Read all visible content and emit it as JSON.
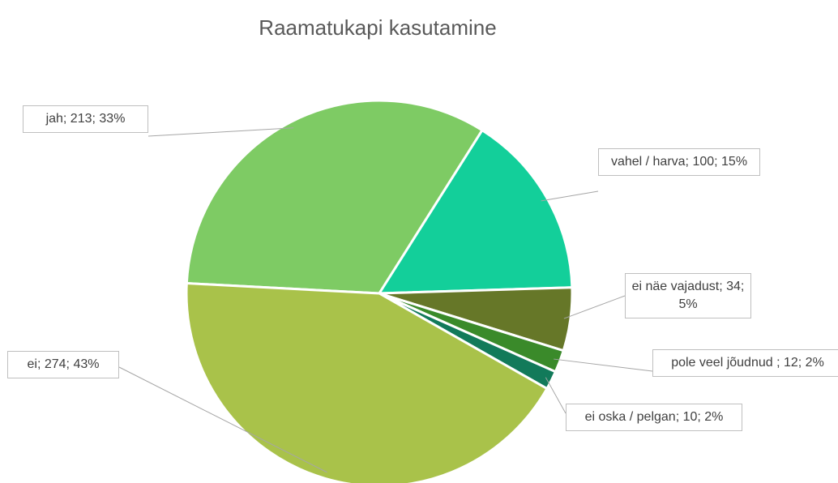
{
  "chart_data": {
    "type": "pie",
    "title": "Raamatukapi kasutamine",
    "categories": [
      "jah",
      "vahel / harva",
      "ei näe vajadust",
      "pole veel jõudnud ",
      "ei oska / pelgan",
      "ei"
    ],
    "values": [
      213,
      100,
      34,
      12,
      10,
      274
    ],
    "value_labels": [
      "jah; 213; 33%",
      "vahel / harva; 100; 15%",
      "ei näe vajadust; 34; 5%",
      "pole veel jõudnud ; 12; 2%",
      "ei oska / pelgan; 10; 2%",
      "ei; 274; 43%"
    ],
    "colors": [
      "#7ecb64",
      "#13cf9a",
      "#667728",
      "#3a8a2a",
      "#127a5a",
      "#a9c24a"
    ]
  }
}
